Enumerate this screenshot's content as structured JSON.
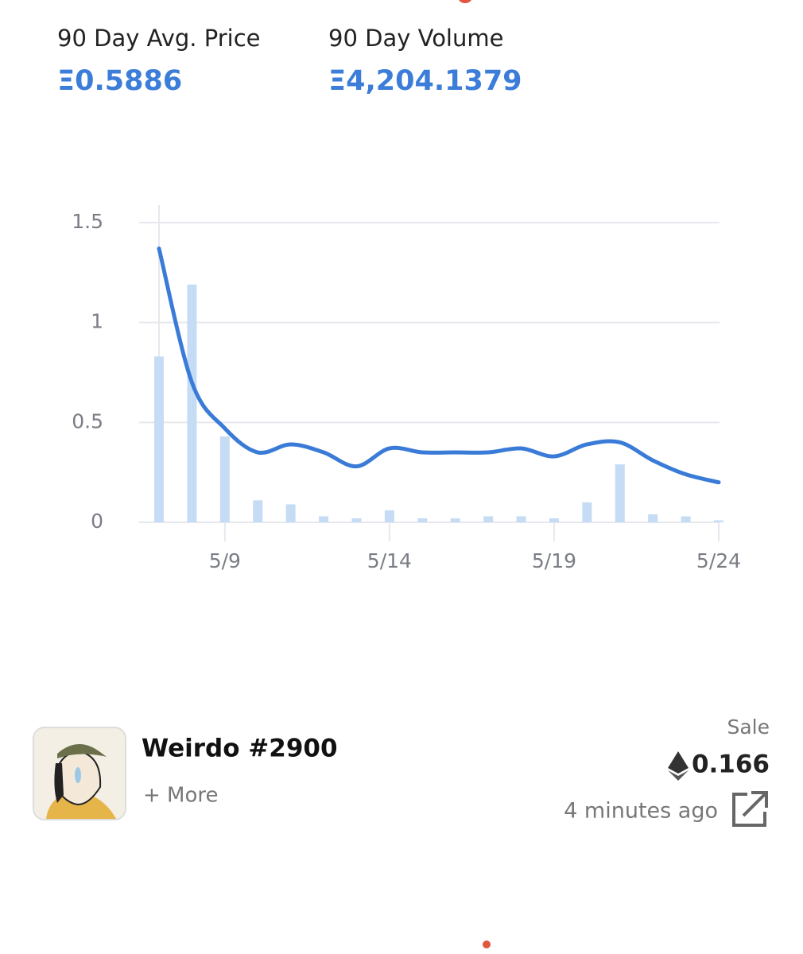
{
  "stats": [
    {
      "label": "90 Day Avg. Price",
      "value": "Ξ0.5886"
    },
    {
      "label": "90 Day Volume",
      "value": "Ξ4,204.1379"
    }
  ],
  "chart_data": {
    "type": "combo",
    "categories": [
      null,
      null,
      "5/9",
      null,
      null,
      null,
      null,
      "5/14",
      null,
      null,
      null,
      null,
      "5/19",
      null,
      null,
      null,
      null,
      "5/24"
    ],
    "series": [
      {
        "type": "bar",
        "color": "#c6dcf5",
        "values": [
          0.83,
          1.19,
          0.43,
          0.11,
          0.09,
          0.03,
          0.02,
          0.06,
          0.02,
          0.02,
          0.03,
          0.03,
          0.02,
          0.1,
          0.29,
          0.04,
          0.03,
          0.01
        ]
      },
      {
        "type": "line",
        "color": "#3a7bd8",
        "values": [
          1.37,
          0.7,
          0.47,
          0.35,
          0.39,
          0.35,
          0.28,
          0.37,
          0.35,
          0.35,
          0.35,
          0.37,
          0.33,
          0.39,
          0.4,
          0.31,
          0.24,
          0.2
        ]
      }
    ],
    "ylim": [
      0,
      1.5
    ],
    "yticks": [
      0,
      0.5,
      1,
      1.5
    ],
    "grid": true
  },
  "sale": {
    "title": "Weirdo #2900",
    "more": "+ More",
    "kind": "Sale",
    "price": "0.166",
    "time": "4 minutes ago"
  }
}
